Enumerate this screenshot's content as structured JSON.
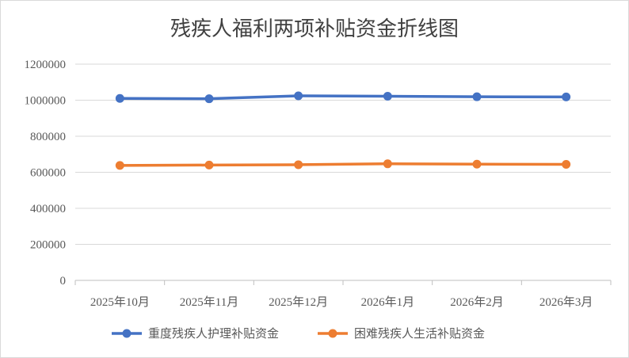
{
  "chart_data": {
    "type": "line",
    "title": "残疾人福利两项补贴资金折线图",
    "xlabel": "",
    "ylabel": "",
    "categories": [
      "2025年10月",
      "2025年11月",
      "2025年12月",
      "2026年1月",
      "2026年2月",
      "2026年3月"
    ],
    "ylim": [
      0,
      1200000
    ],
    "yticks": [
      "0",
      "200000",
      "400000",
      "600000",
      "800000",
      "1000000",
      "1200000"
    ],
    "grid": true,
    "legend_position": "bottom",
    "series": [
      {
        "name": "重度残疾人护理补贴资金",
        "color": "#4472C4",
        "values": [
          1010000,
          1008000,
          1024000,
          1022000,
          1019000,
          1018000
        ]
      },
      {
        "name": "困难残疾人生活补贴资金",
        "color": "#ED7D31",
        "values": [
          638000,
          640000,
          642000,
          647000,
          645000,
          644000
        ]
      }
    ]
  }
}
